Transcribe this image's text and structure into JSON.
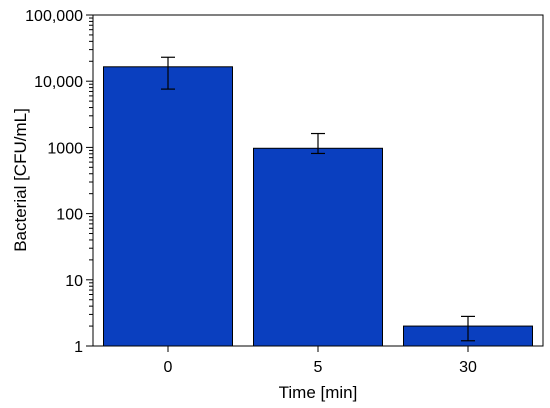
{
  "chart_data": {
    "type": "bar",
    "title": "",
    "xlabel": "Time [min]",
    "ylabel": "Bacterial [CFU/mL]",
    "y_scale": "log",
    "ylim": [
      1,
      100000
    ],
    "y_ticks": [
      {
        "value": 1,
        "label": "1"
      },
      {
        "value": 10,
        "label": "10"
      },
      {
        "value": 100,
        "label": "100"
      },
      {
        "value": 1000,
        "label": "1000"
      },
      {
        "value": 10000,
        "label": "10,000"
      },
      {
        "value": 100000,
        "label": "100,000"
      }
    ],
    "categories": [
      "0",
      "5",
      "30"
    ],
    "values": [
      16500,
      970,
      2
    ],
    "error_bars": [
      {
        "low": 7600,
        "high": 23000
      },
      {
        "low": 810,
        "high": 1620
      },
      {
        "low": 1.2,
        "high": 2.8
      }
    ],
    "bar_color": "#0a3fbf",
    "bar_edge_color": "#000000",
    "grid": false,
    "legend": "none"
  }
}
